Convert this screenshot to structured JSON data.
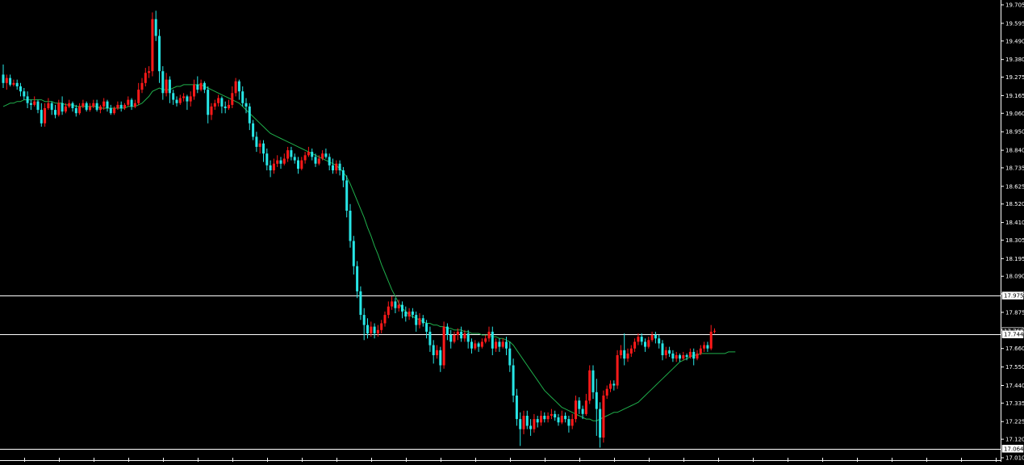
{
  "colors": {
    "background": "#000000",
    "bull": "#ff1a1a",
    "bear": "#27e6e6",
    "ma": "#1fae4b",
    "hline": "#ffffff",
    "axis_text": "#ffffff"
  },
  "chart_data": {
    "type": "candlestick",
    "ylim": [
      17.01,
      19.705
    ],
    "y_ticks": [
      "19.705",
      "19.595",
      "19.490",
      "19.380",
      "19.275",
      "19.165",
      "19.060",
      "18.950",
      "18.840",
      "18.735",
      "18.625",
      "18.520",
      "18.410",
      "18.305",
      "18.195",
      "18.090",
      "17.985",
      "17.875",
      "17.770",
      "17.660",
      "17.550",
      "17.440",
      "17.335",
      "17.225",
      "17.120",
      "17.010"
    ],
    "grid": false,
    "hlines": [
      {
        "value": 17.975,
        "label": "17.975"
      },
      {
        "value": 17.744,
        "label": "17.744"
      },
      {
        "value": 17.064,
        "label": "17.064"
      }
    ],
    "current_price": {
      "value": 17.765,
      "label": "17.765"
    },
    "candles": [
      [
        19.29,
        19.24,
        19.35,
        19.21
      ],
      [
        19.24,
        19.27,
        19.29,
        19.2
      ],
      [
        19.27,
        19.23,
        19.29,
        19.22
      ],
      [
        19.23,
        19.24,
        19.26,
        19.22
      ],
      [
        19.24,
        19.22,
        19.26,
        19.2
      ],
      [
        19.22,
        19.19,
        19.24,
        19.16
      ],
      [
        19.19,
        19.16,
        19.21,
        19.14
      ],
      [
        19.16,
        19.12,
        19.19,
        19.09
      ],
      [
        19.12,
        19.11,
        19.14,
        19.08
      ],
      [
        19.11,
        19.13,
        19.16,
        19.1
      ],
      [
        19.13,
        19.08,
        19.14,
        19.06
      ],
      [
        19.08,
        19.0,
        19.12,
        18.98
      ],
      [
        19.0,
        19.09,
        19.12,
        18.98
      ],
      [
        19.09,
        19.12,
        19.15,
        19.08
      ],
      [
        19.12,
        19.08,
        19.13,
        19.05
      ],
      [
        19.08,
        19.05,
        19.11,
        19.03
      ],
      [
        19.05,
        19.12,
        19.14,
        19.04
      ],
      [
        19.12,
        19.07,
        19.16,
        19.05
      ],
      [
        19.07,
        19.1,
        19.12,
        19.06
      ],
      [
        19.1,
        19.12,
        19.14,
        19.09
      ],
      [
        19.12,
        19.09,
        19.13,
        19.07
      ],
      [
        19.09,
        19.06,
        19.11,
        19.04
      ],
      [
        19.06,
        19.1,
        19.12,
        19.05
      ],
      [
        19.1,
        19.12,
        19.14,
        19.09
      ],
      [
        19.12,
        19.08,
        19.13,
        19.07
      ],
      [
        19.08,
        19.1,
        19.12,
        19.07
      ],
      [
        19.1,
        19.12,
        19.14,
        19.09
      ],
      [
        19.12,
        19.08,
        19.14,
        19.07
      ],
      [
        19.08,
        19.1,
        19.11,
        19.06
      ],
      [
        19.1,
        19.13,
        19.15,
        19.08
      ],
      [
        19.13,
        19.09,
        19.14,
        19.07
      ],
      [
        19.09,
        19.06,
        19.11,
        19.05
      ],
      [
        19.06,
        19.09,
        19.1,
        19.05
      ],
      [
        19.09,
        19.11,
        19.13,
        19.08
      ],
      [
        19.11,
        19.09,
        19.13,
        19.07
      ],
      [
        19.09,
        19.11,
        19.12,
        19.08
      ],
      [
        19.11,
        19.14,
        19.16,
        19.1
      ],
      [
        19.14,
        19.1,
        19.15,
        19.08
      ],
      [
        19.1,
        19.12,
        19.14,
        19.09
      ],
      [
        19.12,
        19.2,
        19.24,
        19.11
      ],
      [
        19.2,
        19.24,
        19.27,
        19.18
      ],
      [
        19.24,
        19.3,
        19.33,
        19.22
      ],
      [
        19.3,
        19.31,
        19.34,
        19.27
      ],
      [
        19.31,
        19.62,
        19.66,
        19.28
      ],
      [
        19.62,
        19.52,
        19.67,
        19.49
      ],
      [
        19.52,
        19.31,
        19.56,
        19.24
      ],
      [
        19.31,
        19.18,
        19.34,
        19.14
      ],
      [
        19.18,
        19.26,
        19.3,
        19.16
      ],
      [
        19.26,
        19.18,
        19.28,
        19.12
      ],
      [
        19.18,
        19.14,
        19.2,
        19.11
      ],
      [
        19.14,
        19.12,
        19.16,
        19.1
      ],
      [
        19.12,
        19.15,
        19.17,
        19.11
      ],
      [
        19.15,
        19.16,
        19.18,
        19.13
      ],
      [
        19.16,
        19.13,
        19.17,
        19.08
      ],
      [
        19.13,
        19.16,
        19.19,
        19.1
      ],
      [
        19.16,
        19.23,
        19.26,
        19.14
      ],
      [
        19.23,
        19.2,
        19.28,
        19.18
      ],
      [
        19.2,
        19.24,
        19.26,
        19.19
      ],
      [
        19.24,
        19.2,
        19.25,
        19.18
      ],
      [
        19.2,
        19.05,
        19.22,
        19.0
      ],
      [
        19.05,
        19.1,
        19.12,
        19.02
      ],
      [
        19.1,
        19.12,
        19.14,
        19.08
      ],
      [
        19.12,
        19.15,
        19.17,
        19.1
      ],
      [
        19.15,
        19.1,
        19.16,
        19.06
      ],
      [
        19.1,
        19.09,
        19.13,
        19.06
      ],
      [
        19.09,
        19.11,
        19.14,
        19.08
      ],
      [
        19.11,
        19.18,
        19.22,
        19.09
      ],
      [
        19.18,
        19.25,
        19.27,
        19.16
      ],
      [
        19.25,
        19.19,
        19.26,
        19.14
      ],
      [
        19.19,
        19.12,
        19.22,
        19.1
      ],
      [
        19.12,
        19.1,
        19.15,
        19.06
      ],
      [
        19.1,
        19.0,
        19.12,
        18.96
      ],
      [
        19.0,
        18.92,
        19.02,
        18.9
      ],
      [
        18.92,
        18.86,
        18.95,
        18.83
      ],
      [
        18.86,
        18.88,
        18.9,
        18.82
      ],
      [
        18.88,
        18.82,
        18.9,
        18.77
      ],
      [
        18.82,
        18.75,
        18.85,
        18.72
      ],
      [
        18.75,
        18.72,
        18.78,
        18.68
      ],
      [
        18.72,
        18.76,
        18.79,
        18.7
      ],
      [
        18.76,
        18.78,
        18.81,
        18.74
      ],
      [
        18.78,
        18.76,
        18.8,
        18.73
      ],
      [
        18.76,
        18.79,
        18.82,
        18.75
      ],
      [
        18.79,
        18.84,
        18.86,
        18.77
      ],
      [
        18.84,
        18.8,
        18.86,
        18.78
      ],
      [
        18.8,
        18.78,
        18.82,
        18.76
      ],
      [
        18.78,
        18.73,
        18.8,
        18.7
      ],
      [
        18.73,
        18.78,
        18.8,
        18.72
      ],
      [
        18.78,
        18.81,
        18.83,
        18.76
      ],
      [
        18.81,
        18.83,
        18.86,
        18.8
      ],
      [
        18.83,
        18.8,
        18.85,
        18.78
      ],
      [
        18.8,
        18.76,
        18.82,
        18.74
      ],
      [
        18.76,
        18.79,
        18.81,
        18.75
      ],
      [
        18.79,
        18.82,
        18.84,
        18.78
      ],
      [
        18.82,
        18.8,
        18.85,
        18.79
      ],
      [
        18.8,
        18.75,
        18.82,
        18.72
      ],
      [
        18.75,
        18.72,
        18.79,
        18.7
      ],
      [
        18.72,
        18.76,
        18.78,
        18.7
      ],
      [
        18.76,
        18.72,
        18.78,
        18.69
      ],
      [
        18.72,
        18.66,
        18.74,
        18.62
      ],
      [
        18.66,
        18.48,
        18.69,
        18.44
      ],
      [
        18.48,
        18.3,
        18.52,
        18.26
      ],
      [
        18.3,
        18.15,
        18.33,
        18.1
      ],
      [
        18.15,
        18.0,
        18.18,
        17.96
      ],
      [
        18.0,
        17.86,
        18.03,
        17.83
      ],
      [
        17.86,
        17.8,
        17.9,
        17.71
      ],
      [
        17.8,
        17.75,
        17.84,
        17.72
      ],
      [
        17.75,
        17.79,
        17.82,
        17.73
      ],
      [
        17.79,
        17.75,
        17.81,
        17.72
      ],
      [
        17.75,
        17.77,
        17.8,
        17.73
      ],
      [
        17.77,
        17.81,
        17.83,
        17.75
      ],
      [
        17.81,
        17.86,
        17.88,
        17.79
      ],
      [
        17.86,
        17.91,
        17.94,
        17.84
      ],
      [
        17.91,
        17.94,
        17.97,
        17.89
      ],
      [
        17.94,
        17.9,
        17.96,
        17.87
      ],
      [
        17.9,
        17.92,
        17.95,
        17.88
      ],
      [
        17.92,
        17.88,
        17.94,
        17.84
      ],
      [
        17.88,
        17.85,
        17.91,
        17.82
      ],
      [
        17.85,
        17.88,
        17.9,
        17.83
      ],
      [
        17.88,
        17.86,
        17.9,
        17.84
      ],
      [
        17.86,
        17.8,
        17.88,
        17.76
      ],
      [
        17.8,
        17.84,
        17.87,
        17.78
      ],
      [
        17.84,
        17.81,
        17.86,
        17.79
      ],
      [
        17.81,
        17.76,
        17.83,
        17.72
      ],
      [
        17.76,
        17.68,
        17.79,
        17.64
      ],
      [
        17.68,
        17.62,
        17.71,
        17.57
      ],
      [
        17.62,
        17.65,
        17.68,
        17.6
      ],
      [
        17.65,
        17.56,
        17.67,
        17.52
      ],
      [
        17.56,
        17.79,
        17.82,
        17.54
      ],
      [
        17.79,
        17.74,
        17.81,
        17.71
      ],
      [
        17.74,
        17.7,
        17.77,
        17.66
      ],
      [
        17.7,
        17.74,
        17.76,
        17.69
      ],
      [
        17.74,
        17.76,
        17.78,
        17.71
      ],
      [
        17.76,
        17.72,
        17.79,
        17.7
      ],
      [
        17.72,
        17.75,
        17.77,
        17.7
      ],
      [
        17.75,
        17.7,
        17.77,
        17.66
      ],
      [
        17.7,
        17.66,
        17.72,
        17.63
      ],
      [
        17.66,
        17.69,
        17.71,
        17.65
      ],
      [
        17.69,
        17.67,
        17.7,
        17.64
      ],
      [
        17.67,
        17.7,
        17.72,
        17.66
      ],
      [
        17.7,
        17.72,
        17.74,
        17.69
      ],
      [
        17.72,
        17.76,
        17.79,
        17.7
      ],
      [
        17.76,
        17.66,
        17.79,
        17.62
      ],
      [
        17.66,
        17.7,
        17.72,
        17.64
      ],
      [
        17.7,
        17.67,
        17.72,
        17.64
      ],
      [
        17.67,
        17.7,
        17.72,
        17.66
      ],
      [
        17.7,
        17.66,
        17.73,
        17.62
      ],
      [
        17.66,
        17.56,
        17.7,
        17.52
      ],
      [
        17.56,
        17.38,
        17.6,
        17.34
      ],
      [
        17.38,
        17.24,
        17.42,
        17.2
      ],
      [
        17.24,
        17.18,
        17.28,
        17.08
      ],
      [
        17.18,
        17.26,
        17.29,
        17.15
      ],
      [
        17.26,
        17.2,
        17.29,
        17.18
      ],
      [
        17.2,
        17.18,
        17.24,
        17.14
      ],
      [
        17.18,
        17.24,
        17.27,
        17.16
      ],
      [
        17.24,
        17.22,
        17.26,
        17.19
      ],
      [
        17.22,
        17.26,
        17.29,
        17.2
      ],
      [
        17.26,
        17.24,
        17.28,
        17.22
      ],
      [
        17.24,
        17.26,
        17.28,
        17.22
      ],
      [
        17.26,
        17.27,
        17.3,
        17.24
      ],
      [
        17.27,
        17.25,
        17.29,
        17.23
      ],
      [
        17.25,
        17.22,
        17.27,
        17.2
      ],
      [
        17.22,
        17.26,
        17.29,
        17.21
      ],
      [
        17.26,
        17.24,
        17.28,
        17.22
      ],
      [
        17.24,
        17.2,
        17.26,
        17.16
      ],
      [
        17.2,
        17.24,
        17.27,
        17.18
      ],
      [
        17.24,
        17.35,
        17.38,
        17.22
      ],
      [
        17.35,
        17.3,
        17.37,
        17.27
      ],
      [
        17.3,
        17.27,
        17.32,
        17.24
      ],
      [
        17.27,
        17.35,
        17.39,
        17.26
      ],
      [
        17.35,
        17.53,
        17.56,
        17.33
      ],
      [
        17.53,
        17.4,
        17.56,
        17.36
      ],
      [
        17.4,
        17.3,
        17.48,
        17.14
      ],
      [
        17.3,
        17.13,
        17.34,
        17.07
      ],
      [
        17.13,
        17.38,
        17.41,
        17.1
      ],
      [
        17.38,
        17.42,
        17.44,
        17.36
      ],
      [
        17.42,
        17.45,
        17.47,
        17.4
      ],
      [
        17.45,
        17.44,
        17.47,
        17.41
      ],
      [
        17.44,
        17.62,
        17.65,
        17.42
      ],
      [
        17.62,
        17.65,
        17.68,
        17.6
      ],
      [
        17.65,
        17.6,
        17.75,
        17.56
      ],
      [
        17.6,
        17.63,
        17.66,
        17.58
      ],
      [
        17.63,
        17.66,
        17.68,
        17.61
      ],
      [
        17.66,
        17.7,
        17.72,
        17.64
      ],
      [
        17.7,
        17.73,
        17.75,
        17.68
      ],
      [
        17.73,
        17.7,
        17.75,
        17.68
      ],
      [
        17.7,
        17.67,
        17.72,
        17.64
      ],
      [
        17.67,
        17.71,
        17.73,
        17.66
      ],
      [
        17.71,
        17.74,
        17.76,
        17.7
      ],
      [
        17.74,
        17.72,
        17.76,
        17.69
      ],
      [
        17.72,
        17.69,
        17.74,
        17.66
      ],
      [
        17.69,
        17.62,
        17.71,
        17.59
      ],
      [
        17.62,
        17.65,
        17.67,
        17.6
      ],
      [
        17.65,
        17.63,
        17.67,
        17.61
      ],
      [
        17.63,
        17.6,
        17.65,
        17.58
      ],
      [
        17.6,
        17.62,
        17.64,
        17.58
      ],
      [
        17.62,
        17.6,
        17.63,
        17.58
      ],
      [
        17.6,
        17.62,
        17.64,
        17.59
      ],
      [
        17.62,
        17.61,
        17.63,
        17.59
      ],
      [
        17.61,
        17.64,
        17.66,
        17.6
      ],
      [
        17.64,
        17.6,
        17.66,
        17.56
      ],
      [
        17.6,
        17.63,
        17.65,
        17.59
      ],
      [
        17.63,
        17.66,
        17.68,
        17.62
      ],
      [
        17.66,
        17.68,
        17.7,
        17.64
      ],
      [
        17.68,
        17.66,
        17.7,
        17.64
      ],
      [
        17.66,
        17.76,
        17.8,
        17.65
      ],
      [
        17.76,
        17.765,
        17.78,
        17.75
      ]
    ],
    "ma": [
      19.1,
      19.11,
      19.12,
      19.12,
      19.13,
      19.13,
      19.14,
      19.14,
      19.14,
      19.14,
      19.14,
      19.14,
      19.13,
      19.13,
      19.13,
      19.12,
      19.12,
      19.12,
      19.11,
      19.11,
      19.11,
      19.1,
      19.1,
      19.1,
      19.1,
      19.1,
      19.1,
      19.1,
      19.09,
      19.09,
      19.09,
      19.09,
      19.09,
      19.09,
      19.09,
      19.09,
      19.1,
      19.1,
      19.1,
      19.11,
      19.12,
      19.14,
      19.16,
      19.19,
      19.2,
      19.21,
      19.2,
      19.2,
      19.2,
      19.21,
      19.22,
      19.22,
      19.23,
      19.23,
      19.23,
      19.23,
      19.23,
      19.23,
      19.22,
      19.21,
      19.2,
      19.19,
      19.18,
      19.17,
      19.16,
      19.15,
      19.14,
      19.13,
      19.12,
      19.1,
      19.08,
      19.06,
      19.04,
      19.02,
      19.0,
      18.98,
      18.96,
      18.94,
      18.93,
      18.92,
      18.91,
      18.9,
      18.89,
      18.88,
      18.87,
      18.86,
      18.85,
      18.84,
      18.83,
      18.82,
      18.81,
      18.8,
      18.79,
      18.78,
      18.77,
      18.76,
      18.75,
      18.73,
      18.71,
      18.68,
      18.64,
      18.59,
      18.54,
      18.49,
      18.44,
      18.38,
      18.33,
      18.27,
      18.22,
      18.16,
      18.11,
      18.06,
      18.01,
      17.97,
      17.93,
      17.9,
      17.88,
      17.86,
      17.85,
      17.84,
      17.83,
      17.82,
      17.81,
      17.81,
      17.8,
      17.8,
      17.79,
      17.79,
      17.78,
      17.78,
      17.77,
      17.77,
      17.77,
      17.76,
      17.76,
      17.75,
      17.75,
      17.75,
      17.74,
      17.74,
      17.74,
      17.73,
      17.73,
      17.72,
      17.72,
      17.71,
      17.7,
      17.68,
      17.65,
      17.62,
      17.59,
      17.56,
      17.53,
      17.5,
      17.47,
      17.44,
      17.41,
      17.39,
      17.37,
      17.35,
      17.33,
      17.31,
      17.3,
      17.29,
      17.28,
      17.27,
      17.26,
      17.25,
      17.24,
      17.24,
      17.23,
      17.23,
      17.24,
      17.25,
      17.26,
      17.27,
      17.28,
      17.28,
      17.29,
      17.3,
      17.31,
      17.32,
      17.33,
      17.34,
      17.36,
      17.38,
      17.4,
      17.42,
      17.44,
      17.46,
      17.48,
      17.5,
      17.52,
      17.54,
      17.56,
      17.58,
      17.59,
      17.6,
      17.61,
      17.62,
      17.62,
      17.63,
      17.63,
      17.63,
      17.63,
      17.63,
      17.63,
      17.63,
      17.63,
      17.64,
      17.64,
      17.64
    ]
  }
}
